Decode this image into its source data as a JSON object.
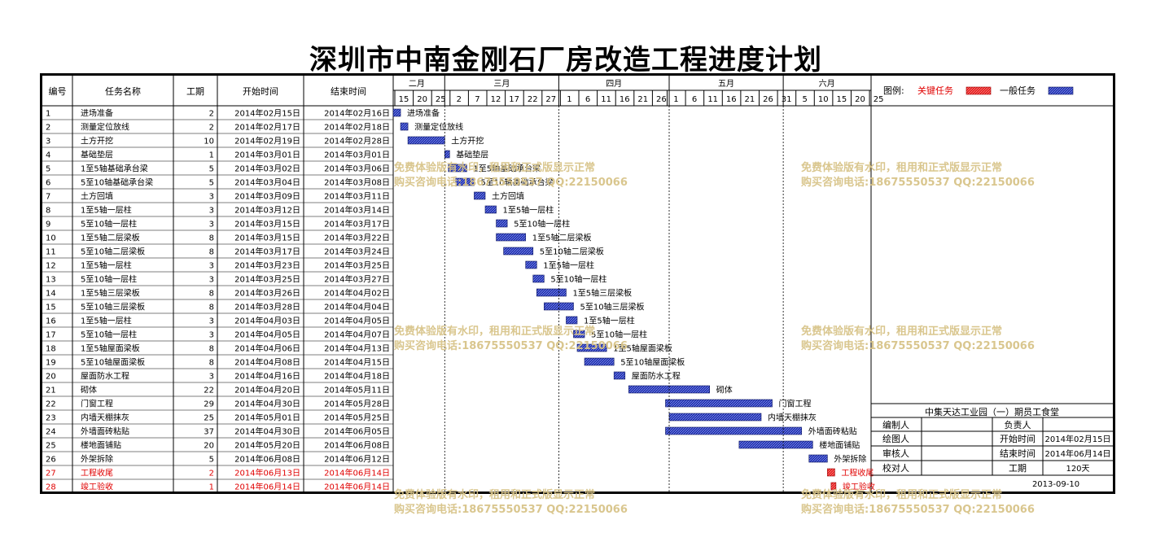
{
  "title": "深圳市中南金刚石厂房改造工程进度计划",
  "headers": {
    "id": "编号",
    "name": "任务名称",
    "duration": "工期",
    "start": "开始时间",
    "end": "结束时间"
  },
  "months": [
    "二月",
    "三月",
    "四月",
    "五月",
    "六月"
  ],
  "day_ticks": [
    "15",
    "20",
    "25",
    "2",
    "7",
    "12",
    "17",
    "22",
    "27",
    "1",
    "6",
    "11",
    "16",
    "21",
    "26",
    "1",
    "6",
    "11",
    "16",
    "21",
    "26",
    "31",
    "5",
    "10",
    "15",
    "20",
    "25"
  ],
  "legend": {
    "label": "图例:",
    "critical": "关键任务",
    "normal": "一般任务"
  },
  "colors": {
    "critical": "#e21a1a",
    "normal": "#1f2fa8",
    "critical_text": "#e00000"
  },
  "chart_data": {
    "type": "gantt",
    "tasks": [
      {
        "id": "1",
        "name": "进场准备",
        "duration": "2",
        "start": "2014年02月15日",
        "end": "2014年02月16日",
        "critical": false
      },
      {
        "id": "2",
        "name": "测量定位放线",
        "duration": "2",
        "start": "2014年02月17日",
        "end": "2014年02月18日",
        "critical": false
      },
      {
        "id": "3",
        "name": "土方开挖",
        "duration": "10",
        "start": "2014年02月19日",
        "end": "2014年02月28日",
        "critical": false
      },
      {
        "id": "4",
        "name": "基础垫层",
        "duration": "1",
        "start": "2014年03月01日",
        "end": "2014年03月01日",
        "critical": false
      },
      {
        "id": "5",
        "name": "1至5轴基础承台梁",
        "duration": "5",
        "start": "2014年03月02日",
        "end": "2014年03月06日",
        "critical": false
      },
      {
        "id": "6",
        "name": "5至10轴基础承台梁",
        "duration": "5",
        "start": "2014年03月04日",
        "end": "2014年03月08日",
        "critical": false
      },
      {
        "id": "7",
        "name": "土方回填",
        "duration": "3",
        "start": "2014年03月09日",
        "end": "2014年03月11日",
        "critical": false
      },
      {
        "id": "8",
        "name": "1至5轴一层柱",
        "duration": "3",
        "start": "2014年03月12日",
        "end": "2014年03月14日",
        "critical": false
      },
      {
        "id": "9",
        "name": "5至10轴一层柱",
        "duration": "3",
        "start": "2014年03月15日",
        "end": "2014年03月17日",
        "critical": false
      },
      {
        "id": "10",
        "name": "1至5轴二层梁板",
        "duration": "8",
        "start": "2014年03月15日",
        "end": "2014年03月22日",
        "critical": false
      },
      {
        "id": "11",
        "name": "5至10轴二层梁板",
        "duration": "8",
        "start": "2014年03月17日",
        "end": "2014年03月24日",
        "critical": false
      },
      {
        "id": "12",
        "name": "1至5轴一层柱",
        "duration": "3",
        "start": "2014年03月23日",
        "end": "2014年03月25日",
        "critical": false
      },
      {
        "id": "13",
        "name": "5至10轴一层柱",
        "duration": "3",
        "start": "2014年03月25日",
        "end": "2014年03月27日",
        "critical": false
      },
      {
        "id": "14",
        "name": "1至5轴三层梁板",
        "duration": "8",
        "start": "2014年03月26日",
        "end": "2014年04月02日",
        "critical": false
      },
      {
        "id": "15",
        "name": "5至10轴三层梁板",
        "duration": "8",
        "start": "2014年03月28日",
        "end": "2014年04月04日",
        "critical": false
      },
      {
        "id": "16",
        "name": "1至5轴一层柱",
        "duration": "3",
        "start": "2014年04月03日",
        "end": "2014年04月05日",
        "critical": false
      },
      {
        "id": "17",
        "name": "5至10轴一层柱",
        "duration": "3",
        "start": "2014年04月05日",
        "end": "2014年04月07日",
        "critical": false
      },
      {
        "id": "18",
        "name": "1至5轴屋面梁板",
        "duration": "8",
        "start": "2014年04月06日",
        "end": "2014年04月13日",
        "critical": false
      },
      {
        "id": "19",
        "name": "5至10轴屋面梁板",
        "duration": "8",
        "start": "2014年04月08日",
        "end": "2014年04月15日",
        "critical": false
      },
      {
        "id": "20",
        "name": "屋面防水工程",
        "duration": "3",
        "start": "2014年04月16日",
        "end": "2014年04月18日",
        "critical": false
      },
      {
        "id": "21",
        "name": "砌体",
        "duration": "22",
        "start": "2014年04月20日",
        "end": "2014年05月11日",
        "critical": false
      },
      {
        "id": "22",
        "name": "门窗工程",
        "duration": "29",
        "start": "2014年04月30日",
        "end": "2014年05月28日",
        "critical": false
      },
      {
        "id": "23",
        "name": "内墙天棚抹灰",
        "duration": "25",
        "start": "2014年05月01日",
        "end": "2014年05月25日",
        "critical": false
      },
      {
        "id": "24",
        "name": "外墙面砖粘贴",
        "duration": "37",
        "start": "2014年04月30日",
        "end": "2014年06月05日",
        "critical": false
      },
      {
        "id": "25",
        "name": "楼地面铺贴",
        "duration": "20",
        "start": "2014年05月20日",
        "end": "2014年06月08日",
        "critical": false
      },
      {
        "id": "26",
        "name": "外架拆除",
        "duration": "5",
        "start": "2014年06月08日",
        "end": "2014年06月12日",
        "critical": false
      },
      {
        "id": "27",
        "name": "工程收尾",
        "duration": "2",
        "start": "2014年06月13日",
        "end": "2014年06月14日",
        "critical": true
      },
      {
        "id": "28",
        "name": "竣工验收",
        "duration": "1",
        "start": "2014年06月14日",
        "end": "2014年06月14日",
        "critical": true
      }
    ]
  },
  "info": {
    "project": "中集天达工业园（一）期员工食堂",
    "compiler_label": "编制人",
    "leader_label": "负责人",
    "drawer_label": "绘图人",
    "start_label": "开始时间",
    "start_value": "2014年02月15日",
    "reviewer_label": "审核人",
    "end_label": "结束时间",
    "end_value": "2014年06月14日",
    "proof_label": "校对人",
    "duration_label": "工期",
    "duration_value": "120天",
    "date": "2013-09-10"
  },
  "watermark": {
    "line1": "免费体验版有水印，租用和正式版显示正常",
    "line2": "购买咨询电话:18675550537 QQ:22150066"
  }
}
